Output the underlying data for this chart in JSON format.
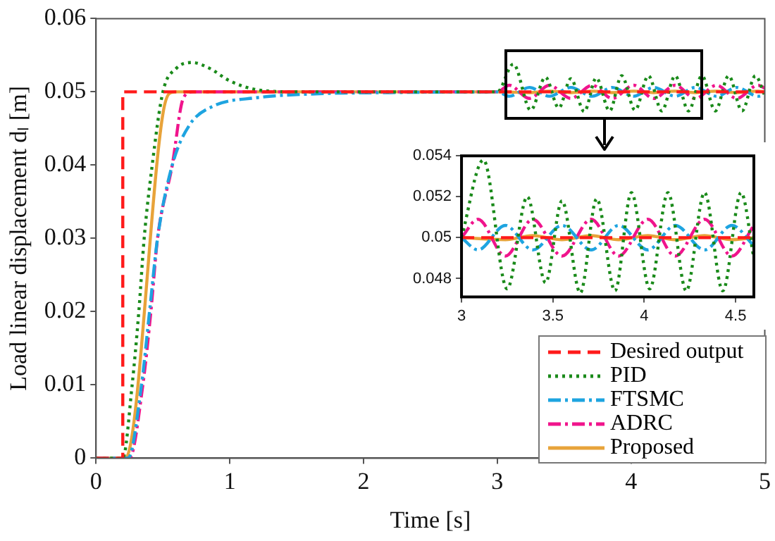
{
  "chart_data": [
    {
      "type": "line",
      "xlabel": "Time [s]",
      "ylabel": "Load linear displacement dₗ [m]",
      "xlim": [
        0,
        5
      ],
      "xticks": [
        0,
        1,
        2,
        3,
        4,
        5
      ],
      "ylim": [
        0,
        0.06
      ],
      "yticks": [
        0,
        0.01,
        0.02,
        0.03,
        0.04,
        0.05,
        0.06
      ],
      "grid": false,
      "legend": "bottom right",
      "series": [
        {
          "name": "Desired output",
          "color": "#ff1a1a",
          "line_style": "dashed",
          "x": [
            0,
            0.2,
            0.2,
            5
          ],
          "values": [
            0,
            0,
            0.05,
            0.05
          ]
        },
        {
          "name": "PID",
          "color": "#1a8a1a",
          "line_style": "dotted",
          "x": [
            0,
            0.2,
            0.27,
            0.32,
            0.36,
            0.42,
            0.5,
            0.6,
            0.72,
            0.85,
            1.0,
            1.2,
            1.5,
            3.0,
            3.12,
            3.25,
            3.36,
            3.46,
            3.55,
            3.65,
            3.74,
            3.84,
            3.93,
            4.03,
            4.13,
            4.23,
            4.33,
            4.43,
            4.53,
            4.63,
            4.73,
            4.83,
            4.93,
            5.0
          ],
          "values": [
            0,
            0,
            0.01,
            0.02,
            0.03,
            0.04,
            0.05,
            0.0532,
            0.054,
            0.0532,
            0.0515,
            0.0503,
            0.05,
            0.05,
            0.0538,
            0.0475,
            0.052,
            0.0478,
            0.0518,
            0.0473,
            0.0519,
            0.0474,
            0.0522,
            0.0475,
            0.0522,
            0.0474,
            0.0522,
            0.0474,
            0.0522,
            0.0474,
            0.0522,
            0.0474,
            0.0522,
            0.0495
          ]
        },
        {
          "name": "FTSMC",
          "color": "#1ea4e0",
          "line_style": "dashdot",
          "x": [
            0,
            0.24,
            0.34,
            0.4,
            0.46,
            0.57,
            0.7,
            0.87,
            1.2,
            1.6,
            2.2,
            3.0,
            3.09,
            3.24,
            3.39,
            3.55,
            3.71,
            3.86,
            4.02,
            4.17,
            4.33,
            4.48,
            4.64,
            4.79,
            4.95,
            5.0
          ],
          "values": [
            0,
            0,
            0.01,
            0.02,
            0.03,
            0.04,
            0.0455,
            0.048,
            0.0492,
            0.0497,
            0.0499,
            0.05,
            0.0494,
            0.0506,
            0.0494,
            0.0506,
            0.0494,
            0.0506,
            0.0494,
            0.0506,
            0.0494,
            0.0506,
            0.0494,
            0.0506,
            0.0494,
            0.0496
          ]
        },
        {
          "name": "ADRC",
          "color": "#f0148c",
          "line_style": "dashdot",
          "x": [
            0,
            0.25,
            0.35,
            0.41,
            0.46,
            0.57,
            0.65,
            0.72,
            3.0,
            3.09,
            3.24,
            3.39,
            3.55,
            3.71,
            3.86,
            4.02,
            4.17,
            4.33,
            4.48,
            4.64,
            4.79,
            4.95,
            5.0
          ],
          "values": [
            0,
            0,
            0.01,
            0.02,
            0.03,
            0.04,
            0.049,
            0.05,
            0.05,
            0.0509,
            0.0491,
            0.0509,
            0.0491,
            0.0509,
            0.0491,
            0.0509,
            0.0491,
            0.0509,
            0.0491,
            0.0509,
            0.0491,
            0.0509,
            0.0505
          ]
        },
        {
          "name": "Proposed",
          "color": "#e8a33a",
          "line_style": "solid",
          "x": [
            0,
            0.22,
            0.5,
            0.55,
            0.6,
            3.0,
            3.24,
            3.39,
            3.55,
            3.71,
            3.86,
            4.02,
            4.17,
            4.33,
            4.48,
            4.64,
            4.79,
            4.95,
            5.0
          ],
          "values": [
            0,
            0,
            0.047,
            0.0498,
            0.05,
            0.05,
            0.0499,
            0.0501,
            0.0499,
            0.0501,
            0.0499,
            0.0501,
            0.0499,
            0.0501,
            0.0499,
            0.0501,
            0.0499,
            0.0501,
            0.05
          ]
        }
      ]
    },
    {
      "type": "line",
      "xlim": [
        3,
        4.6
      ],
      "xticks": [
        3,
        3.5,
        4,
        4.5
      ],
      "ylim": [
        0.0471,
        0.054
      ],
      "yticks": [
        0.048,
        0.05,
        0.052,
        0.054
      ],
      "grid": false,
      "series": [
        {
          "color": "#ff1a1a",
          "line_style": "dashed",
          "x": [
            3,
            4.6
          ],
          "values": [
            0.05,
            0.05
          ]
        },
        {
          "color": "#1a8a1a",
          "line_style": "dotted",
          "x": [
            3.0,
            3.12,
            3.25,
            3.36,
            3.46,
            3.55,
            3.65,
            3.74,
            3.84,
            3.93,
            4.03,
            4.13,
            4.23,
            4.33,
            4.43,
            4.53,
            4.6
          ],
          "values": [
            0.05,
            0.0538,
            0.0475,
            0.052,
            0.0478,
            0.0518,
            0.0473,
            0.0519,
            0.0474,
            0.0522,
            0.0475,
            0.0522,
            0.0474,
            0.0522,
            0.0474,
            0.0522,
            0.049
          ]
        },
        {
          "color": "#1ea4e0",
          "line_style": "dashdot",
          "x": [
            3.0,
            3.09,
            3.24,
            3.39,
            3.55,
            3.71,
            3.86,
            4.02,
            4.17,
            4.33,
            4.48,
            4.6
          ],
          "values": [
            0.05,
            0.0494,
            0.0506,
            0.0494,
            0.0506,
            0.0494,
            0.0506,
            0.0494,
            0.0506,
            0.0494,
            0.0506,
            0.0496
          ]
        },
        {
          "color": "#f0148c",
          "line_style": "dashdot",
          "x": [
            3.0,
            3.09,
            3.24,
            3.39,
            3.55,
            3.71,
            3.86,
            4.02,
            4.17,
            4.33,
            4.48,
            4.6
          ],
          "values": [
            0.05,
            0.0509,
            0.0491,
            0.0509,
            0.0491,
            0.0509,
            0.0491,
            0.0509,
            0.0491,
            0.0509,
            0.0491,
            0.0506
          ]
        },
        {
          "color": "#e8a33a",
          "line_style": "solid",
          "x": [
            3.0,
            3.24,
            3.39,
            3.55,
            3.71,
            3.86,
            4.02,
            4.17,
            4.33,
            4.48,
            4.6
          ],
          "values": [
            0.05,
            0.0499,
            0.0501,
            0.0499,
            0.0501,
            0.0499,
            0.0501,
            0.0499,
            0.0501,
            0.0499,
            0.05
          ]
        }
      ]
    }
  ]
}
